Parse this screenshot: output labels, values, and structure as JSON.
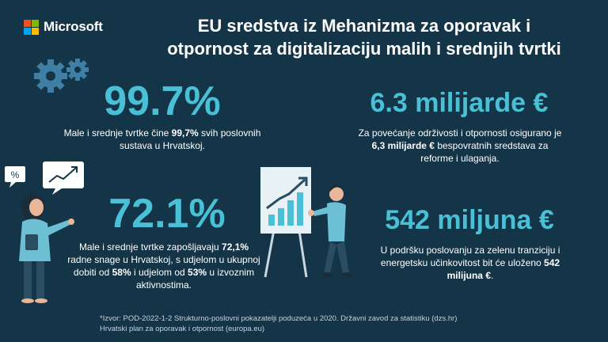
{
  "brand": {
    "name": "Microsoft",
    "logo_colors": [
      "#f25022",
      "#7fba00",
      "#00a4ef",
      "#ffb900"
    ]
  },
  "title": {
    "line1": "EU sredstva iz Mehanizma za oporavak i",
    "line2": "otpornost za digitalizaciju malih i srednjih tvrtki"
  },
  "stats": [
    {
      "value": "99.7%",
      "desc_parts": [
        "Male i srednje tvrtke čine ",
        "99,7%",
        " svih poslovnih sustava u Hrvatskoj."
      ]
    },
    {
      "value": "6.3 milijarde €",
      "desc_parts": [
        "Za povećanje održivosti i otpornosti osigurano je ",
        "6,3 milijarde €",
        " bespovratnih sredstava za reforme i ulaganja."
      ]
    },
    {
      "value": "72.1%",
      "desc_parts": [
        "Male i srednje tvrtke zapošljavaju ",
        "72,1%",
        " radne snage u Hrvatskoj, s udjelom u ukupnoj dobiti od ",
        "58%",
        " i udjelom od ",
        "53%",
        " u izvoznim aktivnostima."
      ]
    },
    {
      "value": "542 miljuna €",
      "desc_parts": [
        "U podršku poslovanju za zelenu tranziciju i energetsku učinkovitost bit će uloženo ",
        "542 milijuna €",
        "."
      ]
    }
  ],
  "illustration": {
    "percent_bubble": "%"
  },
  "footer": {
    "line1": "*Izvor: POD-2022-1-2 Strukturno-poslovni pokazatelji poduzeća u 2020. Državni zavod za statistiku (dzs.hr)",
    "line2": "Hrvatski plan za oporavak i otpornost (europa.eu)"
  },
  "colors": {
    "background": "#143447",
    "accent": "#49c0d6"
  }
}
